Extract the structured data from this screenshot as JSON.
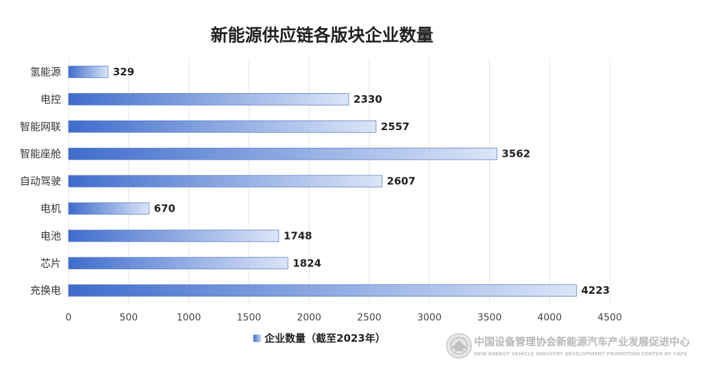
{
  "chart_data": {
    "type": "bar",
    "orientation": "horizontal",
    "title": "新能源供应链各版块企业数量",
    "categories": [
      "氢能源",
      "电控",
      "智能网联",
      "智能座舱",
      "自动驾驶",
      "电机",
      "电池",
      "芯片",
      "充换电"
    ],
    "series": [
      {
        "name": "企业数量（截至2023年）",
        "values": [
          329,
          2330,
          2557,
          3562,
          2607,
          670,
          1748,
          1824,
          4223
        ]
      }
    ],
    "xlim": [
      0,
      4500
    ],
    "xticks": [
      0,
      500,
      1000,
      1500,
      2000,
      2500,
      3000,
      3500,
      4000,
      4500
    ],
    "grid": "vertical",
    "legend": "bottom-center",
    "data_labels": true
  },
  "colors": {
    "bar_start": "#3f6ccc",
    "bar_end": "#dbe5f7",
    "bar_border": "#5b7fc7"
  },
  "watermark": {
    "text": "中国设备管理协会新能源汽车产业发展促进中心",
    "subtext": "NEW ENERGY VEHICLE INDUSTRY DEVELOPMENT PROMOTION CENTER OF CAPE"
  }
}
